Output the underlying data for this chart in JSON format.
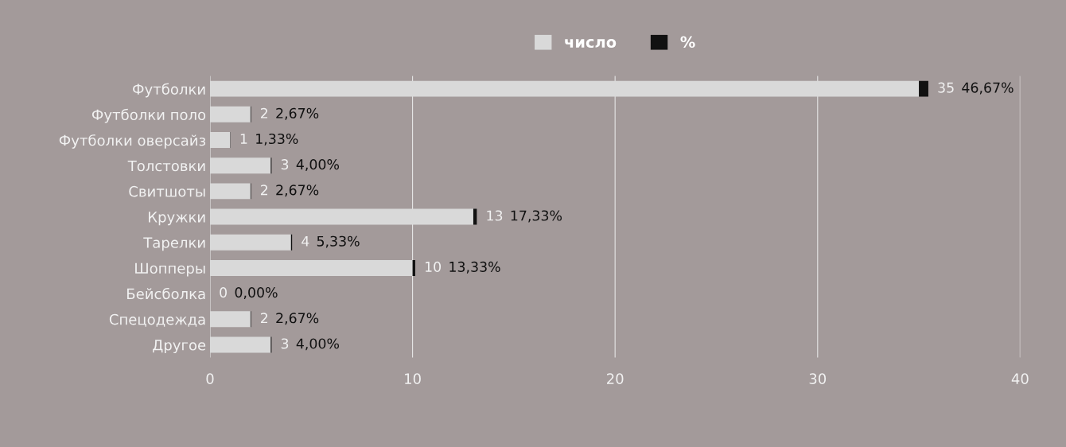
{
  "chart_data": {
    "type": "bar",
    "orientation": "horizontal",
    "stacked": true,
    "categories": [
      "Футболки",
      "Футболки поло",
      "Футболки оверсайз",
      "Толстовки",
      "Свитшоты",
      "Кружки",
      "Тарелки",
      "Шопперы",
      "Бейсболка",
      "Спецодежда",
      "Другое"
    ],
    "series": [
      {
        "name": "число",
        "color": "#d9d9d9",
        "values": [
          35,
          2,
          1,
          3,
          2,
          13,
          4,
          10,
          0,
          2,
          3
        ],
        "value_labels": [
          "35",
          "2",
          "1",
          "3",
          "2",
          "13",
          "4",
          "10",
          "0",
          "2",
          "3"
        ]
      },
      {
        "name": "%",
        "color": "#111111",
        "values": [
          0.4667,
          0.0267,
          0.0133,
          0.04,
          0.0267,
          0.1733,
          0.0533,
          0.1333,
          0,
          0.0267,
          0.04
        ],
        "value_labels": [
          "46,67%",
          "2,67%",
          "1,33%",
          "4,00%",
          "2,67%",
          "17,33%",
          "5,33%",
          "13,33%",
          "0,00%",
          "2,67%",
          "4,00%"
        ]
      }
    ],
    "xlim": [
      0,
      40
    ],
    "xticks": [
      0,
      10,
      20,
      30,
      40
    ],
    "grid": "x",
    "legend": "top"
  }
}
